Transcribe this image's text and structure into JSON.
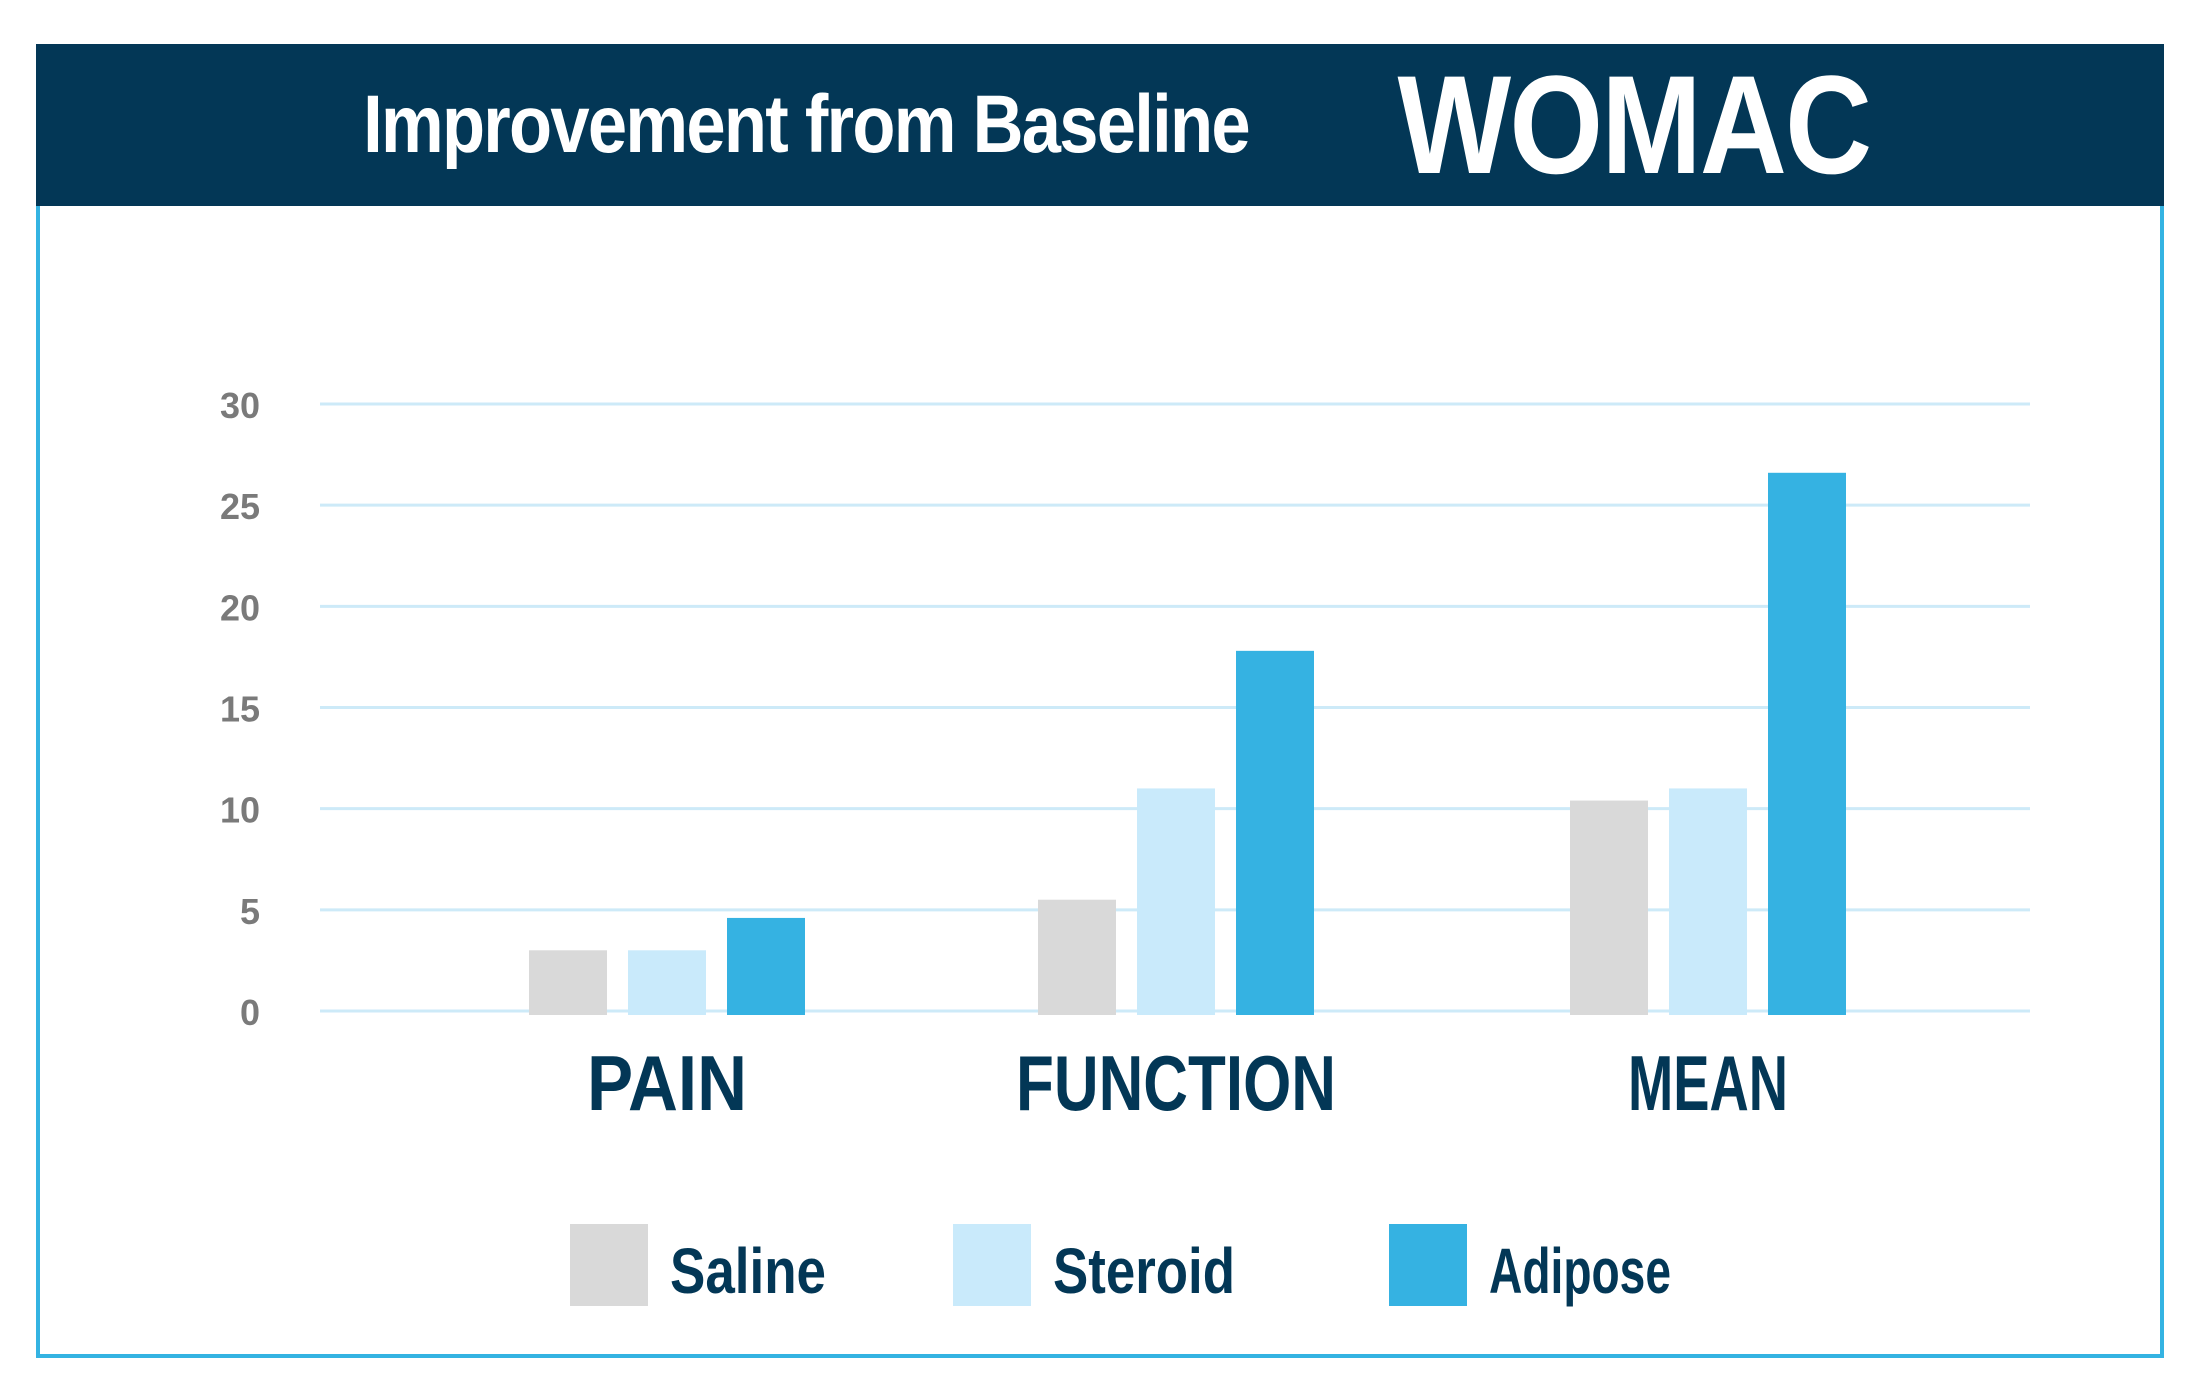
{
  "header": {
    "title": "Improvement from Baseline",
    "title_accent": "WOMAC"
  },
  "colors": {
    "header_bg": "#033756",
    "border": "#34b3e2",
    "gridline": "#cdeaf8",
    "tick_text": "#7a7a7a",
    "category_text": "#033756"
  },
  "chart_data": {
    "type": "bar",
    "title": "Improvement from Baseline WOMAC",
    "xlabel": "",
    "ylabel": "",
    "ylim": [
      0,
      30
    ],
    "yticks": [
      "0",
      "5",
      "10",
      "15",
      "20",
      "25",
      "30"
    ],
    "grid": true,
    "legend_position": "bottom",
    "categories": [
      "PAIN",
      "FUNCTION",
      "MEAN"
    ],
    "series": [
      {
        "name": "Saline",
        "color": "#d9d9d9",
        "values": [
          3.0,
          5.5,
          10.4
        ]
      },
      {
        "name": "Steroid",
        "color": "#c9eafb",
        "values": [
          3.0,
          11.0,
          11.0
        ]
      },
      {
        "name": "Adipose",
        "color": "#35b2e2",
        "values": [
          4.6,
          17.8,
          26.6
        ]
      }
    ]
  }
}
